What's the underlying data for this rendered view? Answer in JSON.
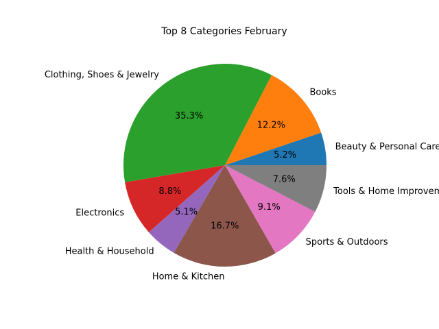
{
  "chart_data": {
    "type": "pie",
    "title": "Top 8 Categories February",
    "start_angle_deg": 0,
    "direction": "counterclockwise",
    "slices": [
      {
        "label": "Beauty & Personal Care",
        "value": 5.2,
        "pct_text": "5.2%",
        "color": "#1f77b4"
      },
      {
        "label": "Books",
        "value": 12.2,
        "pct_text": "12.2%",
        "color": "#ff7f0e"
      },
      {
        "label": "Clothing, Shoes & Jewelry",
        "value": 35.3,
        "pct_text": "35.3%",
        "color": "#2ca02c"
      },
      {
        "label": "Electronics",
        "value": 8.8,
        "pct_text": "8.8%",
        "color": "#d62728"
      },
      {
        "label": "Health & Household",
        "value": 5.1,
        "pct_text": "5.1%",
        "color": "#9467bd"
      },
      {
        "label": "Home & Kitchen",
        "value": 16.7,
        "pct_text": "16.7%",
        "color": "#8c564b"
      },
      {
        "label": "Sports & Outdoors",
        "value": 9.1,
        "pct_text": "9.1%",
        "color": "#e377c2"
      },
      {
        "label": "Tools & Home Improvement",
        "value": 7.6,
        "pct_text": "7.6%",
        "color": "#7f7f7f"
      }
    ]
  }
}
